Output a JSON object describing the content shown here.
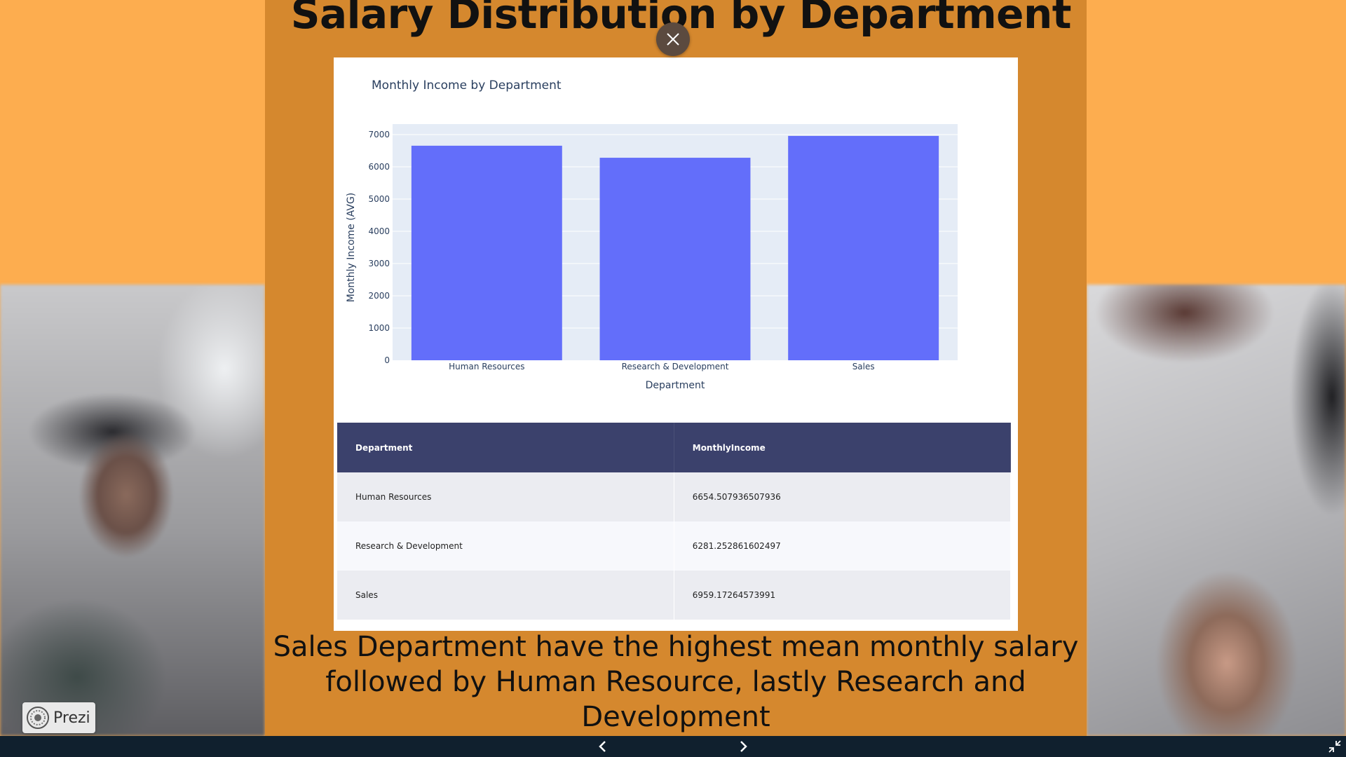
{
  "slide": {
    "title": "Salary Distribution by Department",
    "caption": "Sales Department have the highest mean monthly salary followed by Human Resource, lastly Research and Development"
  },
  "chart_data": {
    "type": "bar",
    "title": "Monthly Income by Department",
    "xlabel": "Department",
    "ylabel": "Monthly Income (AVG)",
    "categories": [
      "Human Resources",
      "Research & Development",
      "Sales"
    ],
    "values": [
      6654.507936507936,
      6281.252861602497,
      6959.17264573991
    ],
    "ylim": [
      0,
      7000
    ],
    "yticks": [
      0,
      1000,
      2000,
      3000,
      4000,
      5000,
      6000,
      7000
    ],
    "grid": true,
    "bar_color": "#636efa",
    "plot_bg": "#e5ecf6"
  },
  "table": {
    "headers": [
      "Department",
      "MonthlyIncome"
    ],
    "rows": [
      [
        "Human Resources",
        "6654.507936507936"
      ],
      [
        "Research & Development",
        "6281.252861602497"
      ],
      [
        "Sales",
        "6959.17264573991"
      ]
    ],
    "header_bg": "#3b416c"
  },
  "branding": {
    "label": "Prezi"
  },
  "colors": {
    "center_panel": "#d5882e",
    "side_panel": "#fdad4f",
    "bottom_bar": "#10202e"
  }
}
